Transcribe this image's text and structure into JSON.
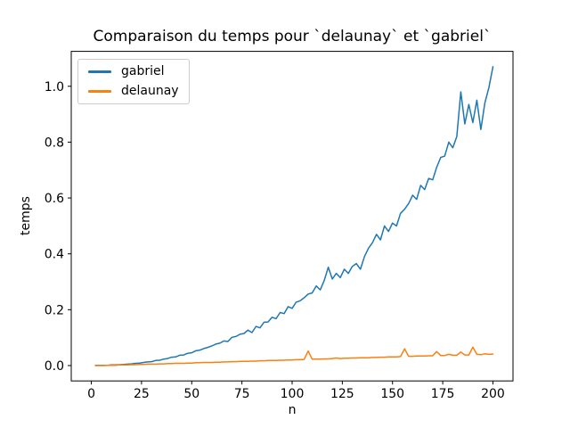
{
  "chart_data": {
    "type": "line",
    "title": "Comparaison du temps pour `delaunay` et `gabriel`",
    "xlabel": "n",
    "ylabel": "temps",
    "grid": false,
    "legend_position": "upper-left",
    "xlim": [
      -10,
      210
    ],
    "ylim": [
      -0.055,
      1.125
    ],
    "xticks": [
      {
        "v": 0,
        "label": "0"
      },
      {
        "v": 25,
        "label": "25"
      },
      {
        "v": 50,
        "label": "50"
      },
      {
        "v": 75,
        "label": "75"
      },
      {
        "v": 100,
        "label": "100"
      },
      {
        "v": 125,
        "label": "125"
      },
      {
        "v": 150,
        "label": "150"
      },
      {
        "v": 175,
        "label": "175"
      },
      {
        "v": 200,
        "label": "200"
      }
    ],
    "yticks": [
      {
        "v": 0.0,
        "label": "0.0"
      },
      {
        "v": 0.2,
        "label": "0.2"
      },
      {
        "v": 0.4,
        "label": "0.4"
      },
      {
        "v": 0.6,
        "label": "0.6"
      },
      {
        "v": 0.8,
        "label": "0.8"
      },
      {
        "v": 1.0,
        "label": "1.0"
      }
    ],
    "x": [
      2,
      4,
      6,
      8,
      10,
      12,
      14,
      16,
      18,
      20,
      22,
      24,
      26,
      28,
      30,
      32,
      34,
      36,
      38,
      40,
      42,
      44,
      46,
      48,
      50,
      52,
      54,
      56,
      58,
      60,
      62,
      64,
      66,
      68,
      70,
      72,
      74,
      76,
      78,
      80,
      82,
      84,
      86,
      88,
      90,
      92,
      94,
      96,
      98,
      100,
      102,
      104,
      106,
      108,
      110,
      112,
      114,
      116,
      118,
      120,
      122,
      124,
      126,
      128,
      130,
      132,
      134,
      136,
      138,
      140,
      142,
      144,
      146,
      148,
      150,
      152,
      154,
      156,
      158,
      160,
      162,
      164,
      166,
      168,
      170,
      172,
      174,
      176,
      178,
      180,
      182,
      184,
      186,
      188,
      190,
      192,
      194,
      196,
      198,
      200
    ],
    "series": [
      {
        "name": "gabriel",
        "color": "#1f77b4",
        "values": [
          0.001,
          0.001,
          0.001,
          0.001,
          0.002,
          0.002,
          0.003,
          0.004,
          0.005,
          0.006,
          0.008,
          0.009,
          0.011,
          0.013,
          0.014,
          0.018,
          0.019,
          0.023,
          0.025,
          0.03,
          0.031,
          0.037,
          0.038,
          0.044,
          0.046,
          0.053,
          0.055,
          0.061,
          0.065,
          0.07,
          0.077,
          0.08,
          0.088,
          0.086,
          0.101,
          0.104,
          0.112,
          0.115,
          0.127,
          0.118,
          0.14,
          0.135,
          0.155,
          0.156,
          0.173,
          0.168,
          0.19,
          0.186,
          0.211,
          0.205,
          0.227,
          0.232,
          0.243,
          0.256,
          0.26,
          0.285,
          0.271,
          0.305,
          0.352,
          0.31,
          0.33,
          0.315,
          0.345,
          0.33,
          0.355,
          0.365,
          0.345,
          0.39,
          0.42,
          0.44,
          0.47,
          0.45,
          0.5,
          0.48,
          0.51,
          0.5,
          0.545,
          0.56,
          0.58,
          0.61,
          0.595,
          0.645,
          0.63,
          0.67,
          0.665,
          0.71,
          0.745,
          0.75,
          0.8,
          0.78,
          0.82,
          0.98,
          0.865,
          0.935,
          0.87,
          0.95,
          0.845,
          0.94,
          0.995,
          1.07
        ]
      },
      {
        "name": "delaunay",
        "color": "#ff7f0e",
        "values": [
          0.0,
          0.0,
          0.0,
          0.001,
          0.001,
          0.001,
          0.002,
          0.002,
          0.002,
          0.003,
          0.003,
          0.004,
          0.004,
          0.005,
          0.005,
          0.005,
          0.006,
          0.006,
          0.007,
          0.007,
          0.008,
          0.008,
          0.008,
          0.009,
          0.009,
          0.01,
          0.01,
          0.011,
          0.011,
          0.011,
          0.012,
          0.012,
          0.013,
          0.013,
          0.014,
          0.014,
          0.015,
          0.015,
          0.015,
          0.016,
          0.016,
          0.017,
          0.017,
          0.018,
          0.018,
          0.018,
          0.019,
          0.019,
          0.02,
          0.02,
          0.021,
          0.021,
          0.022,
          0.052,
          0.023,
          0.023,
          0.023,
          0.024,
          0.024,
          0.025,
          0.027,
          0.025,
          0.026,
          0.026,
          0.027,
          0.027,
          0.028,
          0.028,
          0.028,
          0.029,
          0.029,
          0.03,
          0.03,
          0.031,
          0.031,
          0.031,
          0.032,
          0.06,
          0.033,
          0.033,
          0.034,
          0.034,
          0.034,
          0.035,
          0.035,
          0.05,
          0.036,
          0.036,
          0.04,
          0.037,
          0.037,
          0.048,
          0.038,
          0.038,
          0.066,
          0.04,
          0.039,
          0.042,
          0.04,
          0.041
        ]
      }
    ]
  }
}
